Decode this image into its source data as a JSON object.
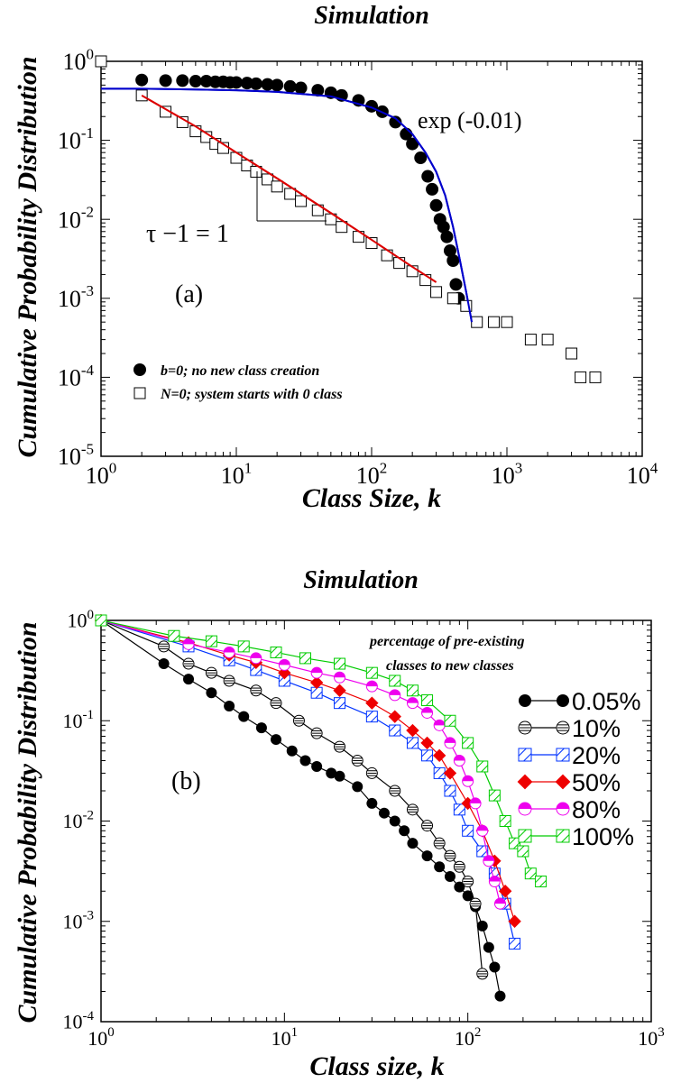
{
  "chart_data": [
    {
      "type": "scatter",
      "title": "Simulation",
      "xlabel": "Class Size, k",
      "ylabel": "Cumulative Probability Distribution",
      "xscale": "log",
      "yscale": "log",
      "xlim": [
        1,
        10000
      ],
      "ylim": [
        1e-05,
        1
      ],
      "panel_label": "(a)",
      "x_ticks": [
        "10^0",
        "10^1",
        "10^2",
        "10^3",
        "10^4"
      ],
      "y_ticks": [
        "10^-5",
        "10^-4",
        "10^-3",
        "10^-2",
        "10^-1",
        "10^0"
      ],
      "annotations": [
        "exp (-0.01)",
        "τ −1 = 1"
      ],
      "legend_placement": "bottom-left",
      "series": [
        {
          "name": "b=0; no new class creation",
          "marker": "filled-circle",
          "color": "#000000",
          "x": [
            2,
            3,
            4,
            5,
            6,
            7,
            8,
            9,
            10,
            12,
            14,
            17,
            20,
            25,
            30,
            40,
            50,
            60,
            80,
            100,
            120,
            150,
            180,
            200,
            230,
            260,
            280,
            300,
            320,
            340,
            360,
            380,
            400,
            420,
            440
          ],
          "y": [
            0.58,
            0.57,
            0.57,
            0.56,
            0.56,
            0.55,
            0.55,
            0.54,
            0.54,
            0.53,
            0.52,
            0.51,
            0.5,
            0.48,
            0.46,
            0.43,
            0.4,
            0.37,
            0.32,
            0.27,
            0.23,
            0.17,
            0.12,
            0.09,
            0.06,
            0.035,
            0.024,
            0.015,
            0.01,
            0.008,
            0.006,
            0.004,
            0.003,
            0.0015,
            0.001
          ]
        },
        {
          "name": "N=0; system starts with 0 class",
          "marker": "open-square",
          "color": "#000000",
          "x": [
            1,
            2,
            3,
            4,
            5,
            6,
            7,
            8,
            10,
            12,
            14,
            17,
            20,
            25,
            30,
            40,
            50,
            60,
            80,
            100,
            130,
            160,
            200,
            250,
            300,
            400,
            500,
            600,
            800,
            1000,
            1500,
            2000,
            3000,
            3500,
            4500
          ],
          "y": [
            1,
            0.37,
            0.23,
            0.17,
            0.13,
            0.11,
            0.09,
            0.08,
            0.06,
            0.048,
            0.04,
            0.032,
            0.026,
            0.021,
            0.017,
            0.013,
            0.01,
            0.008,
            0.006,
            0.005,
            0.0035,
            0.0028,
            0.0022,
            0.0017,
            0.0012,
            0.001,
            0.0008,
            0.0005,
            0.0005,
            0.0005,
            0.0003,
            0.0003,
            0.0002,
            0.0001,
            0.0001
          ]
        },
        {
          "name": "exp (-0.01)",
          "marker": "line",
          "color": "#0000cc",
          "x": [
            1,
            2,
            5,
            10,
            20,
            50,
            100,
            150,
            200,
            250,
            300,
            350,
            400,
            450,
            500,
            550
          ],
          "y": [
            0.45,
            0.45,
            0.44,
            0.43,
            0.41,
            0.36,
            0.26,
            0.19,
            0.12,
            0.07,
            0.04,
            0.02,
            0.008,
            0.003,
            0.0012,
            0.0005
          ]
        },
        {
          "name": "τ −1 = 1",
          "marker": "line",
          "color": "#dd0000",
          "x": [
            2,
            5,
            10,
            20,
            50,
            100,
            200,
            300
          ],
          "y": [
            0.37,
            0.15,
            0.07,
            0.033,
            0.012,
            0.0055,
            0.0025,
            0.0016
          ]
        }
      ]
    },
    {
      "type": "line",
      "title": "Simulation",
      "xlabel": "Class size, k",
      "ylabel": "Cumulative Probability Distribution",
      "xscale": "log",
      "yscale": "log",
      "xlim": [
        1,
        1000
      ],
      "ylim": [
        0.0001,
        1
      ],
      "panel_label": "(b)",
      "x_ticks": [
        "10^0",
        "10^1",
        "10^2",
        "10^3"
      ],
      "y_ticks": [
        "10^-4",
        "10^-3",
        "10^-2",
        "10^-1",
        "10^0"
      ],
      "legend_title": "percentage of pre-existing\nclasses to new classes",
      "legend_placement": "top-right",
      "series": [
        {
          "name": "0.05%",
          "marker": "filled-circle",
          "color": "#000000",
          "x": [
            1,
            2.2,
            3,
            4,
            5,
            6,
            7.5,
            9,
            11,
            13,
            15,
            18,
            20,
            25,
            30,
            35,
            40,
            45,
            50,
            60,
            70,
            80,
            90,
            100,
            110,
            120,
            130,
            140,
            150
          ],
          "y": [
            1,
            0.37,
            0.26,
            0.19,
            0.14,
            0.11,
            0.085,
            0.065,
            0.05,
            0.04,
            0.035,
            0.03,
            0.028,
            0.022,
            0.015,
            0.012,
            0.01,
            0.008,
            0.006,
            0.0045,
            0.0035,
            0.0028,
            0.0022,
            0.0018,
            0.0014,
            0.0009,
            0.00055,
            0.00035,
            0.00018
          ]
        },
        {
          "name": "10%",
          "marker": "striped-circle",
          "color": "#000000",
          "x": [
            1,
            2.2,
            3,
            4,
            5,
            7,
            9,
            12,
            15,
            20,
            25,
            30,
            40,
            50,
            60,
            70,
            80,
            90,
            100,
            110,
            120
          ],
          "y": [
            1,
            0.55,
            0.37,
            0.3,
            0.25,
            0.2,
            0.15,
            0.1,
            0.075,
            0.055,
            0.04,
            0.03,
            0.02,
            0.013,
            0.009,
            0.006,
            0.0045,
            0.0035,
            0.0025,
            0.0015,
            0.0003
          ]
        },
        {
          "name": "20%",
          "marker": "hatched-square",
          "color": "#0033ff",
          "x": [
            1,
            3,
            5,
            7,
            10,
            15,
            20,
            30,
            40,
            50,
            60,
            70,
            80,
            90,
            100,
            120,
            140,
            160,
            180
          ],
          "y": [
            1,
            0.55,
            0.4,
            0.32,
            0.25,
            0.19,
            0.15,
            0.11,
            0.08,
            0.06,
            0.045,
            0.03,
            0.02,
            0.013,
            0.008,
            0.005,
            0.003,
            0.0015,
            0.0006
          ]
        },
        {
          "name": "50%",
          "marker": "filled-diamond",
          "color": "#ee0000",
          "x": [
            1,
            3,
            5,
            7,
            10,
            15,
            20,
            30,
            40,
            50,
            60,
            70,
            80,
            100,
            120,
            140,
            160,
            180
          ],
          "y": [
            1,
            0.6,
            0.45,
            0.38,
            0.3,
            0.24,
            0.2,
            0.15,
            0.11,
            0.08,
            0.06,
            0.045,
            0.03,
            0.015,
            0.008,
            0.004,
            0.002,
            0.001
          ]
        },
        {
          "name": "80%",
          "marker": "half-circle",
          "color": "#ee00ee",
          "x": [
            1,
            3,
            5,
            7,
            10,
            15,
            20,
            30,
            40,
            50,
            60,
            70,
            80,
            90,
            100,
            110,
            120,
            130,
            140,
            150
          ],
          "y": [
            1,
            0.58,
            0.48,
            0.42,
            0.36,
            0.3,
            0.27,
            0.22,
            0.18,
            0.15,
            0.12,
            0.09,
            0.06,
            0.04,
            0.025,
            0.015,
            0.008,
            0.004,
            0.0025,
            0.0015
          ]
        },
        {
          "name": "100%",
          "marker": "hatched-square",
          "color": "#00cc00",
          "x": [
            1,
            2.5,
            4,
            6,
            9,
            13,
            20,
            30,
            40,
            50,
            60,
            80,
            100,
            120,
            140,
            160,
            180,
            200,
            220,
            250
          ],
          "y": [
            1,
            0.7,
            0.62,
            0.55,
            0.48,
            0.42,
            0.37,
            0.3,
            0.25,
            0.2,
            0.16,
            0.1,
            0.06,
            0.035,
            0.018,
            0.01,
            0.006,
            0.005,
            0.003,
            0.0025
          ]
        }
      ]
    }
  ]
}
